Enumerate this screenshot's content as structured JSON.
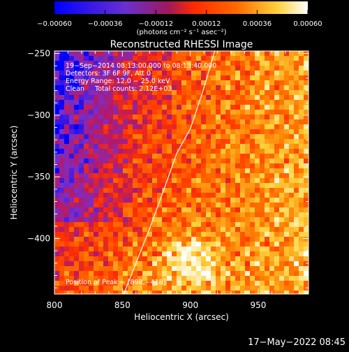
{
  "chart_data": {
    "type": "heatmap",
    "title": "Reconstructed RHESSI Image",
    "xlabel": "Heliocentric X (arcsec)",
    "ylabel": "Heliocentric Y (arcsec)",
    "xlim": [
      800,
      987
    ],
    "ylim": [
      -445,
      -248
    ],
    "x_ticks": [
      800,
      850,
      900,
      950
    ],
    "y_ticks": [
      -250,
      -300,
      -350,
      -400
    ],
    "x_tick_labels": [
      "800",
      "850",
      "900",
      "950"
    ],
    "y_tick_labels": [
      "−250",
      "−300",
      "−350",
      "−400"
    ],
    "grid": false,
    "colorbar": {
      "min": -0.0006,
      "max": 0.0006,
      "ticks": [
        -0.0006,
        -0.00036,
        -0.00012,
        0.00012,
        0.00036,
        0.0006
      ],
      "tick_labels": [
        "−0.00060",
        "−0.00036",
        "−0.00012",
        "0.00012",
        "0.00036",
        "0.00060"
      ],
      "units_label": "(photons cm⁻² s⁻¹ asec⁻²)",
      "colors": [
        "#0000ff",
        "#7a2fc8",
        "#b4186a",
        "#ff3000",
        "#ff7a00",
        "#ffd23c",
        "#ffffff"
      ]
    },
    "annotations": [
      "19−Sep−2014 08:13:00.000 to 08:13:40.000",
      "Detectors: 3F 6F 9F, Att 0",
      "Energy Range: 12.0 − 25.0 keV",
      "Clean     Total counts: 2.12E+03"
    ],
    "peak_label": "Position of Peak = [898,−418]",
    "peak": {
      "x": 898,
      "y": -418
    },
    "limb_points": [
      [
        851,
        -445
      ],
      [
        860,
        -420
      ],
      [
        870,
        -392
      ],
      [
        880,
        -362
      ],
      [
        890,
        -331
      ],
      [
        900,
        -311
      ],
      [
        910,
        -278
      ],
      [
        918,
        -248
      ]
    ],
    "field_description": "noisy CLEAN map: blue/purple negative region upper-left, orange/yellow mottled positive region right, brightest core near peak"
  },
  "footer": {
    "date": "17−May−2022 08:45"
  }
}
